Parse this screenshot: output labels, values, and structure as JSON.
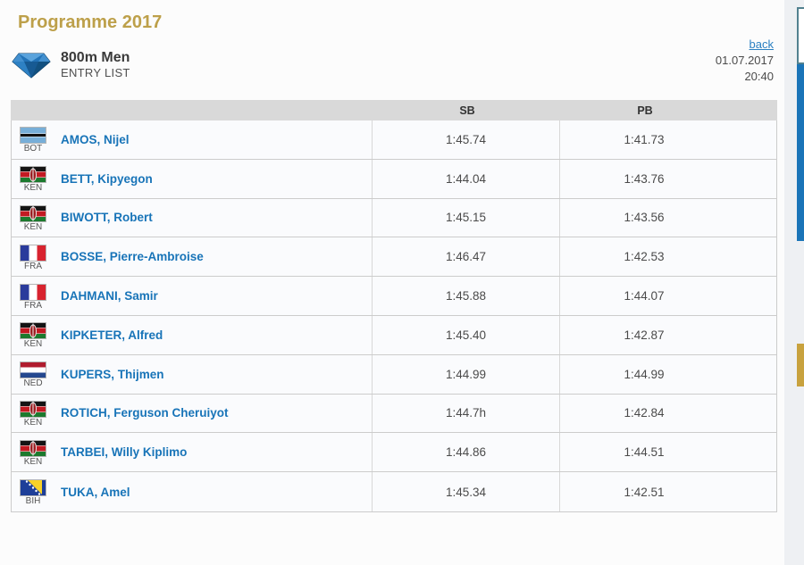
{
  "page": {
    "title": "Programme 2017"
  },
  "event": {
    "name": "800m Men",
    "subtitle": "ENTRY LIST",
    "icon": "diamond-league-diamond-icon"
  },
  "nav": {
    "back_label": "back",
    "date": "01.07.2017",
    "time": "20:40"
  },
  "table": {
    "columns": {
      "sb": "SB",
      "pb": "PB"
    },
    "athletes": [
      {
        "country": "BOT",
        "name": "AMOS, Nijel",
        "sb": "1:45.74",
        "pb": "1:41.73"
      },
      {
        "country": "KEN",
        "name": "BETT, Kipyegon",
        "sb": "1:44.04",
        "pb": "1:43.76"
      },
      {
        "country": "KEN",
        "name": "BIWOTT, Robert",
        "sb": "1:45.15",
        "pb": "1:43.56"
      },
      {
        "country": "FRA",
        "name": "BOSSE, Pierre-Ambroise",
        "sb": "1:46.47",
        "pb": "1:42.53"
      },
      {
        "country": "FRA",
        "name": "DAHMANI, Samir",
        "sb": "1:45.88",
        "pb": "1:44.07"
      },
      {
        "country": "KEN",
        "name": "KIPKETER, Alfred",
        "sb": "1:45.40",
        "pb": "1:42.87"
      },
      {
        "country": "NED",
        "name": "KUPERS, Thijmen",
        "sb": "1:44.99",
        "pb": "1:44.99"
      },
      {
        "country": "KEN",
        "name": "ROTICH, Ferguson Cheruiyot",
        "sb": "1:44.7h",
        "pb": "1:42.84"
      },
      {
        "country": "KEN",
        "name": "TARBEI, Willy Kiplimo",
        "sb": "1:44.86",
        "pb": "1:44.51"
      },
      {
        "country": "BIH",
        "name": "TUKA, Amel",
        "sb": "1:45.34",
        "pb": "1:42.51"
      }
    ]
  },
  "flags": {
    "BOT": {
      "type": "stripes",
      "direction": "horizontal",
      "stripes": [
        {
          "color": "#77aed8",
          "size": 37
        },
        {
          "color": "#ffffff",
          "size": 5
        },
        {
          "color": "#121212",
          "size": 16
        },
        {
          "color": "#ffffff",
          "size": 5
        },
        {
          "color": "#77aed8",
          "size": 37
        }
      ]
    },
    "KEN": {
      "type": "stripes",
      "direction": "horizontal",
      "overlay": "kenya-shield",
      "stripes": [
        {
          "color": "#141414",
          "size": 28
        },
        {
          "color": "#ffffff",
          "size": 5
        },
        {
          "color": "#c21a22",
          "size": 34
        },
        {
          "color": "#ffffff",
          "size": 5
        },
        {
          "color": "#1c7a2e",
          "size": 28
        }
      ]
    },
    "FRA": {
      "type": "stripes",
      "direction": "vertical",
      "stripes": [
        {
          "color": "#2a3b9c",
          "size": 33.4
        },
        {
          "color": "#ffffff",
          "size": 33.2
        },
        {
          "color": "#d8232f",
          "size": 33.4
        }
      ]
    },
    "NED": {
      "type": "stripes",
      "direction": "horizontal",
      "stripes": [
        {
          "color": "#b01c2e",
          "size": 33.4
        },
        {
          "color": "#ffffff",
          "size": 33.2
        },
        {
          "color": "#24488f",
          "size": 33.4
        }
      ]
    },
    "BIH": {
      "type": "bih",
      "blue": "#1e3f99",
      "yellow": "#f8d227",
      "star": "#ffffff"
    }
  },
  "colors": {
    "title_gold": "#bda04a",
    "link_blue": "#1874b8",
    "header_row_bg": "#d9d9d9",
    "row_bg": "#fafbfd",
    "side_blue_bar": "#1a74b8",
    "side_gold_bar": "#c8a23e",
    "side_box_border": "#52818f"
  }
}
